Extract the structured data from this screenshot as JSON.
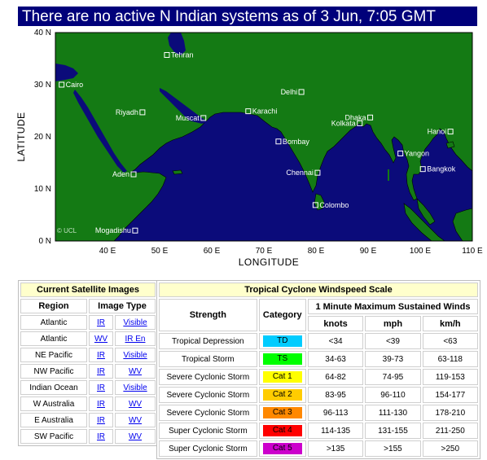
{
  "banner": {
    "text": "There are no active N Indian systems as of 3 Jun, 7:05 GMT"
  },
  "map": {
    "colors": {
      "ocean": "#0b0b7a",
      "land": "#147a14",
      "border": "#000000",
      "city": "#ffffff"
    },
    "xlabel": "LONGITUDE",
    "ylabel": "LATITUDE",
    "copyright": "© UCL",
    "lat_ticks": [
      "40 N",
      "30 N",
      "20 N",
      "10 N",
      "0 N"
    ],
    "lon_ticks": [
      "40 E",
      "50 E",
      "60 E",
      "70 E",
      "80 E",
      "90 E",
      "100 E",
      "110 E"
    ],
    "cities": [
      {
        "name": "Tehran",
        "lon": 51.4,
        "lat": 35.7
      },
      {
        "name": "Cairo",
        "lon": 31.2,
        "lat": 30.0
      },
      {
        "name": "Delhi",
        "lon": 77.2,
        "lat": 28.6
      },
      {
        "name": "Riyadh",
        "lon": 46.7,
        "lat": 24.7
      },
      {
        "name": "Karachi",
        "lon": 67.0,
        "lat": 24.9
      },
      {
        "name": "Muscat",
        "lon": 58.4,
        "lat": 23.6
      },
      {
        "name": "Dhaka",
        "lon": 90.4,
        "lat": 23.7
      },
      {
        "name": "Kolkata",
        "lon": 88.4,
        "lat": 22.6
      },
      {
        "name": "Hanoi",
        "lon": 105.8,
        "lat": 21.0
      },
      {
        "name": "Bombay",
        "lon": 72.8,
        "lat": 19.1
      },
      {
        "name": "Yangon",
        "lon": 96.2,
        "lat": 16.8
      },
      {
        "name": "Bangkok",
        "lon": 100.5,
        "lat": 13.8
      },
      {
        "name": "Aden",
        "lon": 45.0,
        "lat": 12.8
      },
      {
        "name": "Chennai",
        "lon": 80.3,
        "lat": 13.1
      },
      {
        "name": "Colombo",
        "lon": 79.9,
        "lat": 6.9
      },
      {
        "name": "Mogadishu",
        "lon": 45.3,
        "lat": 2.0
      }
    ]
  },
  "satellite": {
    "caption": "Current Satellite Images",
    "headers": {
      "region": "Region",
      "image_type": "Image Type"
    },
    "rows": [
      {
        "region": "Atlantic",
        "a": "IR",
        "b": "Visible"
      },
      {
        "region": "Atlantic",
        "a": "WV",
        "b": "IR En"
      },
      {
        "region": "NE Pacific",
        "a": "IR",
        "b": "Visible"
      },
      {
        "region": "NW Pacific",
        "a": "IR",
        "b": "WV"
      },
      {
        "region": "Indian Ocean",
        "a": "IR",
        "b": "Visible"
      },
      {
        "region": "W Australia",
        "a": "IR",
        "b": "WV"
      },
      {
        "region": "E Australia",
        "a": "IR",
        "b": "WV"
      },
      {
        "region": "SW Pacific",
        "a": "IR",
        "b": "WV"
      }
    ]
  },
  "windscale": {
    "caption": "Tropical Cyclone Windspeed Scale",
    "headers": {
      "strength": "Strength",
      "category": "Category",
      "sustained": "1 Minute Maximum Sustained Winds",
      "knots": "knots",
      "mph": "mph",
      "kmh": "km/h"
    },
    "rows": [
      {
        "strength": "Tropical Depression",
        "cat": "TD",
        "color": "#00ccff",
        "knots": "<34",
        "mph": "<39",
        "kmh": "<63"
      },
      {
        "strength": "Tropical Storm",
        "cat": "TS",
        "color": "#00ff00",
        "knots": "34-63",
        "mph": "39-73",
        "kmh": "63-118"
      },
      {
        "strength": "Severe Cyclonic Storm",
        "cat": "Cat 1",
        "color": "#ffff00",
        "knots": "64-82",
        "mph": "74-95",
        "kmh": "119-153"
      },
      {
        "strength": "Severe Cyclonic Storm",
        "cat": "Cat 2",
        "color": "#ffcc00",
        "knots": "83-95",
        "mph": "96-110",
        "kmh": "154-177"
      },
      {
        "strength": "Severe Cyclonic Storm",
        "cat": "Cat 3",
        "color": "#ff8800",
        "knots": "96-113",
        "mph": "111-130",
        "kmh": "178-210"
      },
      {
        "strength": "Super Cyclonic Storm",
        "cat": "Cat 4",
        "color": "#ff0000",
        "knots": "114-135",
        "mph": "131-155",
        "kmh": "211-250"
      },
      {
        "strength": "Super Cyclonic Storm",
        "cat": "Cat 5",
        "color": "#cc00cc",
        "knots": ">135",
        "mph": ">155",
        "kmh": ">250"
      }
    ]
  }
}
